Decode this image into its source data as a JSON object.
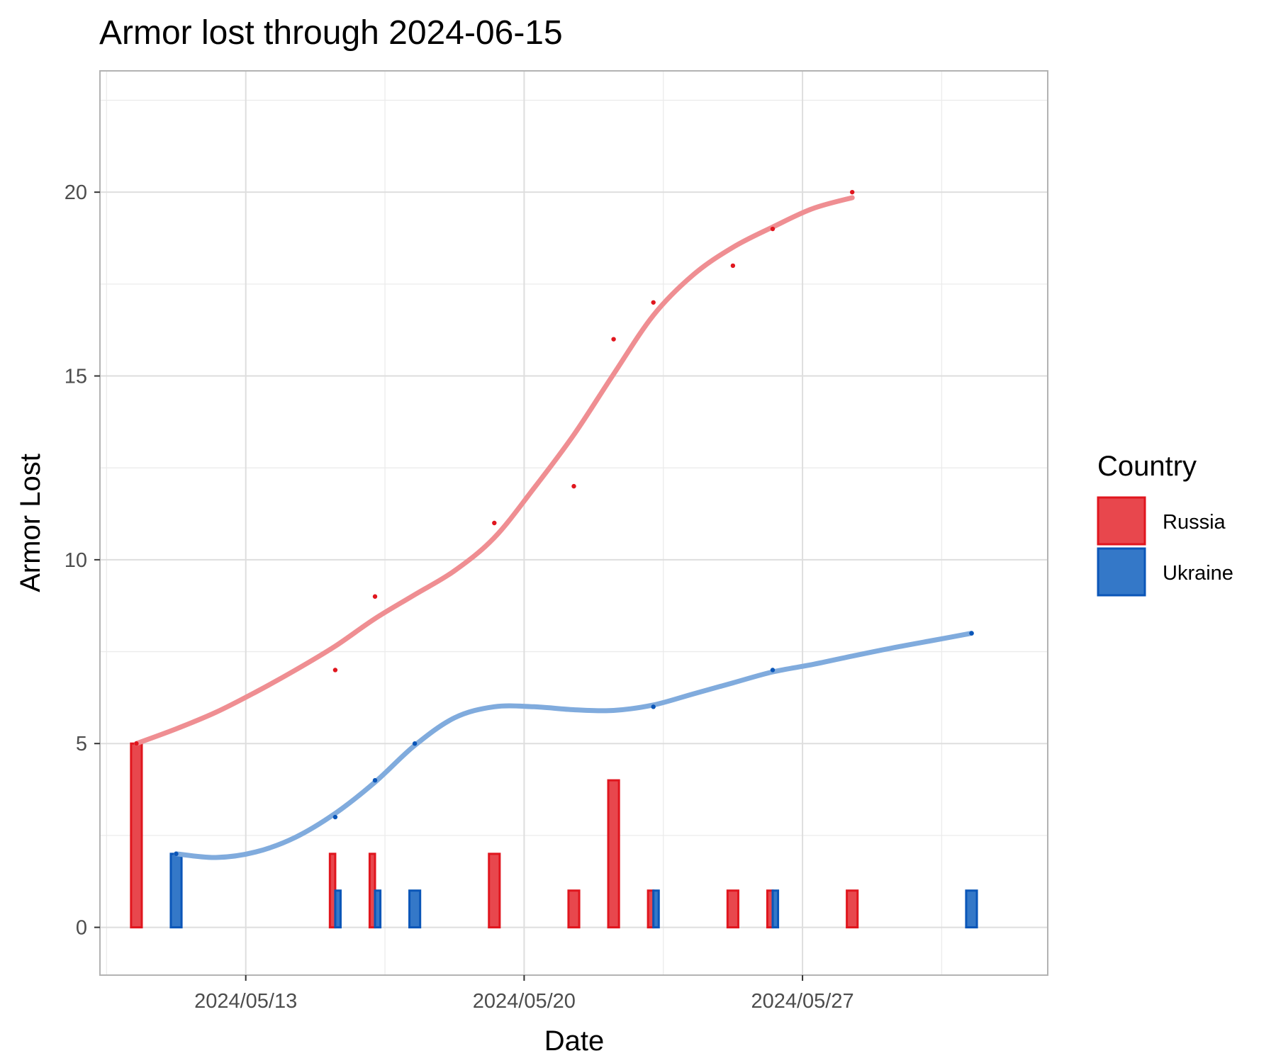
{
  "chart_data": {
    "type": "bar+line",
    "title": "Armor lost through 2024-06-15",
    "xlabel": "Date",
    "ylabel": "Armor Lost",
    "xlim": [
      "2024-05-09T08:00",
      "2024-06-02T04:00"
    ],
    "ylim": [
      -1.3,
      23.3
    ],
    "x_ticks": [
      {
        "date": "2024-05-13",
        "label": "2024/05/13"
      },
      {
        "date": "2024-05-20",
        "label": "2024/05/20"
      },
      {
        "date": "2024-05-27",
        "label": "2024/05/27"
      }
    ],
    "x_minor_ticks": [
      "2024-05-09T12:00",
      "2024-05-16T12:00",
      "2024-05-23T12:00",
      "2024-05-30T12:00"
    ],
    "y_ticks": [
      0,
      5,
      10,
      15,
      20
    ],
    "y_minor_ticks": [
      2.5,
      7.5,
      12.5,
      17.5,
      22.5
    ],
    "grid": true,
    "legend": {
      "title": "Country",
      "position": "right",
      "entries": [
        {
          "label": "Russia",
          "fill": "#e8474d",
          "stroke": "#e0161e"
        },
        {
          "label": "Ukraine",
          "fill": "#3478c8",
          "stroke": "#0b56b8"
        }
      ]
    },
    "series": [
      {
        "name": "Russia",
        "line_color": "#ef8e92",
        "point_color": "#e0161e",
        "daily": [
          {
            "date": "2024-05-10",
            "value": 5
          },
          {
            "date": "2024-05-15",
            "value": 2
          },
          {
            "date": "2024-05-16",
            "value": 2
          },
          {
            "date": "2024-05-19",
            "value": 2
          },
          {
            "date": "2024-05-21",
            "value": 1
          },
          {
            "date": "2024-05-22",
            "value": 4
          },
          {
            "date": "2024-05-23",
            "value": 1
          },
          {
            "date": "2024-05-25",
            "value": 1
          },
          {
            "date": "2024-05-26",
            "value": 1
          },
          {
            "date": "2024-05-28",
            "value": 1
          }
        ],
        "cumulative_points": [
          {
            "date": "2024-05-10",
            "value": 5
          },
          {
            "date": "2024-05-15",
            "value": 7
          },
          {
            "date": "2024-05-16",
            "value": 9
          },
          {
            "date": "2024-05-19",
            "value": 11
          },
          {
            "date": "2024-05-21",
            "value": 12
          },
          {
            "date": "2024-05-22",
            "value": 16
          },
          {
            "date": "2024-05-23",
            "value": 17
          },
          {
            "date": "2024-05-25",
            "value": 18
          },
          {
            "date": "2024-05-26",
            "value": 19
          },
          {
            "date": "2024-05-28",
            "value": 20
          }
        ],
        "smooth": [
          {
            "date": "2024-05-10",
            "value": 5
          },
          {
            "date": "2024-05-11",
            "value": 5.4
          },
          {
            "date": "2024-05-12",
            "value": 5.85
          },
          {
            "date": "2024-05-13",
            "value": 6.4
          },
          {
            "date": "2024-05-14",
            "value": 7
          },
          {
            "date": "2024-05-15",
            "value": 7.65
          },
          {
            "date": "2024-05-16",
            "value": 8.4
          },
          {
            "date": "2024-05-17",
            "value": 9.05
          },
          {
            "date": "2024-05-18",
            "value": 9.7
          },
          {
            "date": "2024-05-19",
            "value": 10.6
          },
          {
            "date": "2024-05-20",
            "value": 11.95
          },
          {
            "date": "2024-05-21",
            "value": 13.4
          },
          {
            "date": "2024-05-22",
            "value": 15.05
          },
          {
            "date": "2024-05-23",
            "value": 16.65
          },
          {
            "date": "2024-05-24",
            "value": 17.75
          },
          {
            "date": "2024-05-25",
            "value": 18.5
          },
          {
            "date": "2024-05-26",
            "value": 19.05
          },
          {
            "date": "2024-05-27",
            "value": 19.55
          },
          {
            "date": "2024-05-28",
            "value": 19.85
          }
        ]
      },
      {
        "name": "Ukraine",
        "line_color": "#80abdd",
        "point_color": "#0b56b8",
        "daily": [
          {
            "date": "2024-05-11",
            "value": 2
          },
          {
            "date": "2024-05-15",
            "value": 1
          },
          {
            "date": "2024-05-16",
            "value": 1
          },
          {
            "date": "2024-05-17",
            "value": 1
          },
          {
            "date": "2024-05-23",
            "value": 1
          },
          {
            "date": "2024-05-26",
            "value": 1
          },
          {
            "date": "2024-05-31",
            "value": 1
          }
        ],
        "cumulative_points": [
          {
            "date": "2024-05-11",
            "value": 2
          },
          {
            "date": "2024-05-15",
            "value": 3
          },
          {
            "date": "2024-05-16",
            "value": 4
          },
          {
            "date": "2024-05-17",
            "value": 5
          },
          {
            "date": "2024-05-23",
            "value": 6
          },
          {
            "date": "2024-05-26",
            "value": 7
          },
          {
            "date": "2024-05-31",
            "value": 8
          }
        ],
        "smooth": [
          {
            "date": "2024-05-11",
            "value": 2
          },
          {
            "date": "2024-05-12",
            "value": 1.9
          },
          {
            "date": "2024-05-13",
            "value": 2.05
          },
          {
            "date": "2024-05-14",
            "value": 2.45
          },
          {
            "date": "2024-05-15",
            "value": 3.1
          },
          {
            "date": "2024-05-16",
            "value": 3.95
          },
          {
            "date": "2024-05-17",
            "value": 4.95
          },
          {
            "date": "2024-05-18",
            "value": 5.7
          },
          {
            "date": "2024-05-19",
            "value": 6
          },
          {
            "date": "2024-05-20",
            "value": 6
          },
          {
            "date": "2024-05-21",
            "value": 5.92
          },
          {
            "date": "2024-05-22",
            "value": 5.9
          },
          {
            "date": "2024-05-23",
            "value": 6.05
          },
          {
            "date": "2024-05-24",
            "value": 6.35
          },
          {
            "date": "2024-05-25",
            "value": 6.65
          },
          {
            "date": "2024-05-26",
            "value": 6.95
          },
          {
            "date": "2024-05-27",
            "value": 7.15
          },
          {
            "date": "2024-05-28",
            "value": 7.38
          },
          {
            "date": "2024-05-29",
            "value": 7.6
          },
          {
            "date": "2024-05-30",
            "value": 7.8
          },
          {
            "date": "2024-05-31",
            "value": 8
          }
        ]
      }
    ]
  }
}
